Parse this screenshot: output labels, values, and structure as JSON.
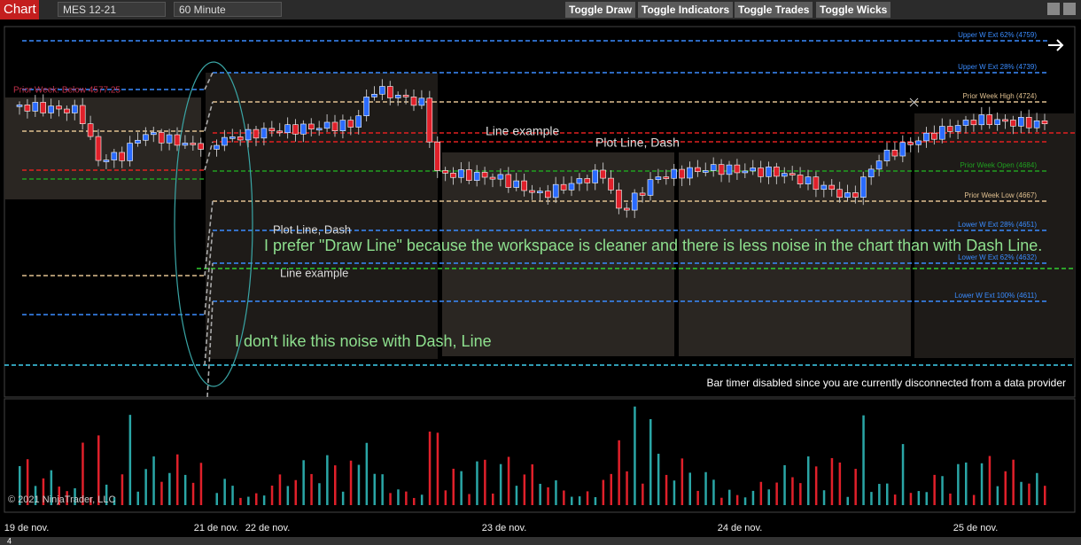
{
  "toolbar": {
    "app_label": "Chart",
    "instrument": "MES 12-21",
    "interval": "60 Minute",
    "buttons": [
      "Toggle Draw",
      "Toggle Indicators",
      "Toggle Trades",
      "Toggle Wicks"
    ]
  },
  "chart": {
    "prior_week_label": "Prior Week: Below 4577.25",
    "levels": [
      "Upper W Ext 62% (4759)",
      "Upper W Ext 28% (4739)",
      "Prior Week High (4724)",
      "Prior Week Open (4684)",
      "Prior Week Low (4667)",
      "Lower W Ext 28% (4651)",
      "Lower W Ext 62% (4632)",
      "Lower W Ext 100% (4611)"
    ],
    "annotations": [
      "Line example",
      "Plot Line, Dash",
      "Plot Line, Dash",
      "I prefer \"Draw Line\" because the workspace is cleaner and there is less noise in the chart than with Dash Line.",
      "Line example",
      "I don't like this noise with Dash, Line"
    ],
    "status_message": "Bar timer disabled since you are currently disconnected from a data provider",
    "copyright": "© 2021 NinjaTrader, LLC",
    "x_axis_labels": [
      "19 de nov.",
      "21 de nov.",
      "22 de nov.",
      "23 de nov.",
      "24 de nov.",
      "25 de nov."
    ]
  },
  "footer": {
    "page_number": "4"
  }
}
